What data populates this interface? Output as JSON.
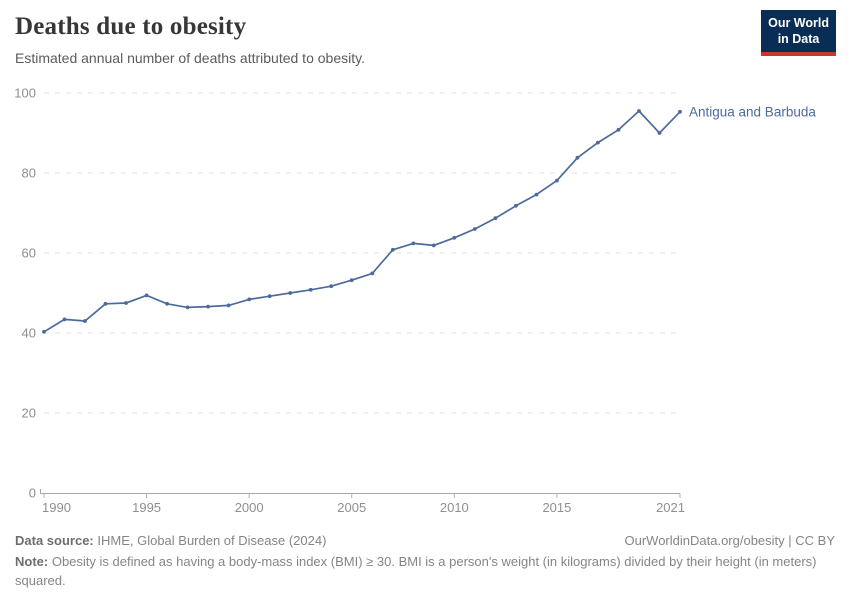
{
  "header": {
    "title": "Deaths due to obesity",
    "subtitle": "Estimated annual number of deaths attributed to obesity.",
    "logo": {
      "line1": "Our World",
      "line2": "in Data"
    }
  },
  "chart_data": {
    "type": "line",
    "title": "Deaths due to obesity",
    "xlabel": "",
    "ylabel": "",
    "xlim": [
      1990,
      2021
    ],
    "ylim": [
      0,
      100
    ],
    "xticks": [
      1990,
      1995,
      2000,
      2005,
      2010,
      2015,
      2021
    ],
    "yticks": [
      0,
      20,
      40,
      60,
      80,
      100
    ],
    "grid": "dashed-horizontal",
    "legend": "end-of-line-label",
    "x": [
      1990,
      1991,
      1992,
      1993,
      1994,
      1995,
      1996,
      1997,
      1998,
      1999,
      2000,
      2001,
      2002,
      2003,
      2004,
      2005,
      2006,
      2007,
      2008,
      2009,
      2010,
      2011,
      2012,
      2013,
      2014,
      2015,
      2016,
      2017,
      2018,
      2019,
      2020,
      2021
    ],
    "series": [
      {
        "name": "Antigua and Barbuda",
        "color": "#4C6A9C",
        "values": [
          40.3,
          43.4,
          43.0,
          47.3,
          47.5,
          49.4,
          47.3,
          46.4,
          46.6,
          46.9,
          48.4,
          49.2,
          50.0,
          50.8,
          51.7,
          53.2,
          54.9,
          60.8,
          62.4,
          61.9,
          63.8,
          66.0,
          68.7,
          71.8,
          74.6,
          78.1,
          83.8,
          87.6,
          90.8,
          95.5,
          90.0,
          95.3
        ]
      }
    ]
  },
  "footer": {
    "source_label": "Data source:",
    "source_text": " IHME, Global Burden of Disease (2024)",
    "rights": "OurWorldinData.org/obesity | CC BY",
    "note_label": "Note:",
    "note_text": " Obesity is defined as having a body-mass index (BMI) ≥ 30. BMI is a person's weight (in kilograms) divided by their height (in meters) squared."
  },
  "colors": {
    "line": "#4C6A9C",
    "gridline": "#e0e0e0",
    "axis": "#a9a9a9",
    "tick": "#b0b0b0",
    "tick_label": "#8f8f8f",
    "title": "#373737",
    "subtitle": "#5b5b5b",
    "footer_text": "#858585",
    "logo_bg": "#0a2d55",
    "logo_stripe": "#c8372d"
  }
}
